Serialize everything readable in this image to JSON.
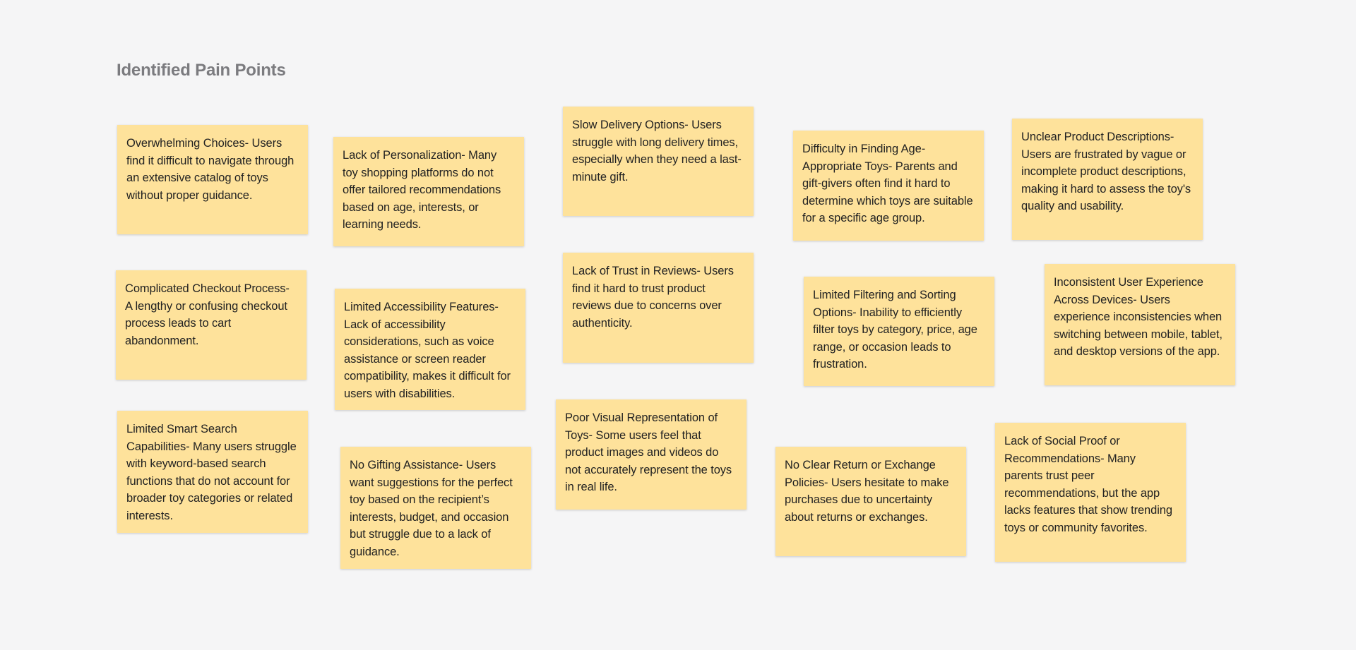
{
  "board": {
    "title": "Identified Pain Points",
    "note_color": "#fee29b",
    "background_color": "#f5f5f6"
  },
  "notes": [
    {
      "id": "overwhelming-choices",
      "text": "Overwhelming Choices- Users find it difficult to navigate through an extensive catalog of toys without proper guidance."
    },
    {
      "id": "lack-of-personalization",
      "text": "Lack of Personalization- Many toy shopping platforms do not offer tailored recommendations based on age, interests, or learning needs."
    },
    {
      "id": "slow-delivery-options",
      "text": "Slow Delivery Options- Users struggle with long delivery times, especially when they need a last-minute gift."
    },
    {
      "id": "difficulty-finding-age-appropriate-toys",
      "text": "Difficulty in Finding Age-Appropriate Toys- Parents and gift-givers often find it hard to determine which toys are suitable for a specific age group."
    },
    {
      "id": "unclear-product-descriptions",
      "text": "Unclear Product Descriptions- Users are frustrated by vague or incomplete product descriptions, making it hard to assess the toy's quality and usability."
    },
    {
      "id": "complicated-checkout-process",
      "text": "Complicated Checkout Process- A lengthy or confusing checkout process leads to cart abandonment."
    },
    {
      "id": "limited-accessibility-features",
      "text": "Limited Accessibility Features- Lack of accessibility considerations, such as voice assistance or screen reader compatibility, makes it difficult for users with disabilities."
    },
    {
      "id": "lack-of-trust-in-reviews",
      "text": "Lack of Trust in Reviews- Users find it hard to trust product reviews due to concerns over authenticity."
    },
    {
      "id": "limited-filtering-and-sorting",
      "text": "Limited Filtering and Sorting Options- Inability to efficiently filter toys by category, price, age range, or occasion leads to frustration."
    },
    {
      "id": "inconsistent-user-experience",
      "text": "Inconsistent User Experience Across Devices-  Users experience inconsistencies when switching between mobile, tablet, and desktop versions of the app."
    },
    {
      "id": "limited-smart-search",
      "text": "Limited Smart Search Capabilities-  Many users struggle with keyword-based search functions that do not account for broader toy categories or related interests."
    },
    {
      "id": "no-gifting-assistance",
      "text": "No Gifting Assistance- Users want suggestions for the perfect toy based on the recipient’s interests, budget, and occasion but struggle due to a lack of guidance."
    },
    {
      "id": "poor-visual-representation",
      "text": "Poor Visual Representation of Toys- Some users feel that product images and videos do not accurately represent the toys in real life."
    },
    {
      "id": "no-clear-return-policies",
      "text": "No Clear Return or Exchange Policies- Users hesitate to make purchases due to uncertainty about returns or exchanges."
    },
    {
      "id": "lack-of-social-proof",
      "text": "Lack of Social Proof or Recommendations- Many parents trust peer recommendations, but the app lacks features that show trending toys or community favorites."
    }
  ]
}
